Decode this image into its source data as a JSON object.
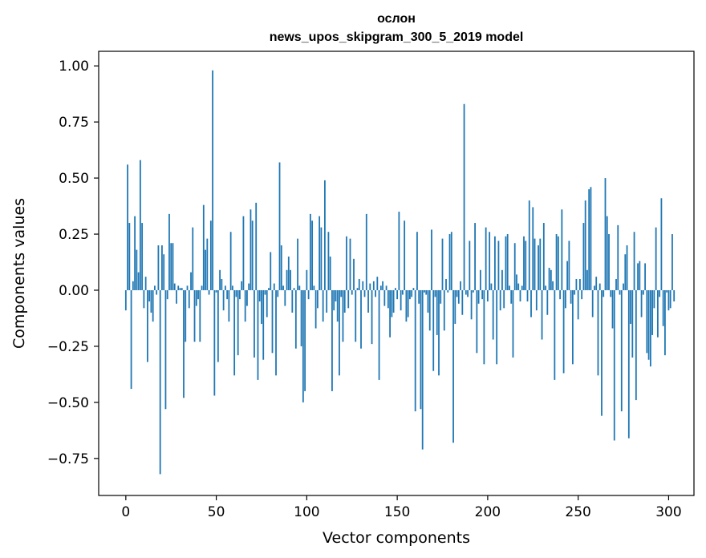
{
  "chart_data": {
    "type": "bar",
    "title": "ослон",
    "subtitle": "news_upos_skipgram_300_5_2019 model",
    "xlabel": "Vector components",
    "ylabel": "Components values",
    "xlim": [
      -15,
      314
    ],
    "ylim": [
      -0.915,
      1.065
    ],
    "grid": false,
    "bar_color": "#1f77b4",
    "x_ticks": [
      {
        "value": 0,
        "label": "0"
      },
      {
        "value": 50,
        "label": "50"
      },
      {
        "value": 100,
        "label": "100"
      },
      {
        "value": 150,
        "label": "150"
      },
      {
        "value": 200,
        "label": "200"
      },
      {
        "value": 250,
        "label": "250"
      },
      {
        "value": 300,
        "label": "300"
      }
    ],
    "y_ticks": [
      {
        "value": 1.0,
        "label": "1.00"
      },
      {
        "value": 0.75,
        "label": "0.75"
      },
      {
        "value": 0.5,
        "label": "0.50"
      },
      {
        "value": 0.25,
        "label": "0.25"
      },
      {
        "value": 0.0,
        "label": "0.00"
      },
      {
        "value": -0.25,
        "label": "−0.25"
      },
      {
        "value": -0.5,
        "label": "−0.50"
      },
      {
        "value": -0.75,
        "label": "−0.75"
      }
    ],
    "values": [
      -0.09,
      0.56,
      0.3,
      -0.44,
      0.04,
      0.33,
      0.18,
      0.08,
      0.58,
      0.3,
      -0.08,
      0.06,
      -0.32,
      -0.05,
      -0.1,
      -0.14,
      0.02,
      -0.02,
      0.2,
      -0.82,
      0.2,
      0.16,
      -0.53,
      -0.04,
      0.34,
      0.21,
      0.21,
      0.03,
      -0.06,
      0.02,
      0.01,
      0.01,
      -0.48,
      -0.23,
      0.02,
      -0.08,
      0.08,
      0.28,
      -0.23,
      -0.07,
      -0.04,
      -0.23,
      0.02,
      0.38,
      0.18,
      0.23,
      -0.02,
      0.31,
      0.98,
      -0.47,
      -0.01,
      -0.32,
      0.09,
      0.05,
      -0.09,
      0.02,
      -0.04,
      -0.14,
      0.26,
      0.02,
      -0.38,
      -0.03,
      -0.29,
      -0.04,
      0.04,
      0.33,
      -0.14,
      -0.07,
      0.03,
      0.36,
      0.31,
      -0.3,
      0.39,
      -0.4,
      -0.05,
      -0.15,
      -0.31,
      -0.02,
      -0.12,
      0.01,
      0.17,
      -0.28,
      0.03,
      -0.38,
      -0.03,
      0.57,
      0.2,
      0.02,
      -0.07,
      0.09,
      0.15,
      0.09,
      -0.1,
      0.01,
      -0.26,
      0.23,
      0.02,
      -0.25,
      -0.5,
      -0.45,
      0.09,
      -0.04,
      0.34,
      0.31,
      0.02,
      -0.17,
      -0.08,
      0.33,
      0.28,
      -0.14,
      0.49,
      -0.1,
      0.26,
      0.15,
      -0.45,
      -0.09,
      -0.05,
      -0.14,
      -0.38,
      -0.03,
      -0.23,
      -0.1,
      0.24,
      -0.08,
      0.23,
      -0.02,
      0.14,
      -0.23,
      0.01,
      0.05,
      -0.26,
      0.04,
      -0.03,
      0.34,
      -0.1,
      0.03,
      -0.24,
      0.04,
      -0.03,
      0.06,
      -0.4,
      0.02,
      0.04,
      -0.07,
      0.02,
      -0.08,
      -0.21,
      -0.12,
      -0.1,
      0.01,
      -0.04,
      0.35,
      -0.09,
      -0.02,
      0.31,
      -0.14,
      -0.12,
      -0.04,
      -0.03,
      0.01,
      -0.54,
      0.26,
      -0.06,
      -0.53,
      -0.71,
      -0.01,
      -0.02,
      -0.1,
      -0.18,
      0.27,
      -0.36,
      -0.03,
      -0.2,
      -0.38,
      -0.06,
      0.23,
      -0.18,
      0.05,
      -0.01,
      0.25,
      0.26,
      -0.68,
      -0.15,
      -0.03,
      -0.06,
      0.04,
      -0.11,
      0.83,
      -0.02,
      -0.03,
      0.22,
      -0.13,
      -0.01,
      0.3,
      -0.28,
      -0.06,
      0.09,
      -0.04,
      -0.33,
      0.28,
      -0.05,
      0.26,
      0.03,
      -0.22,
      0.24,
      -0.33,
      0.22,
      -0.09,
      0.09,
      -0.08,
      0.24,
      0.25,
      0.02,
      -0.06,
      -0.3,
      0.21,
      0.07,
      0.03,
      -0.05,
      0.02,
      0.24,
      0.22,
      -0.05,
      0.4,
      -0.12,
      0.37,
      0.23,
      -0.09,
      0.2,
      0.23,
      -0.22,
      0.3,
      0.02,
      -0.11,
      0.1,
      0.09,
      0.04,
      -0.4,
      0.25,
      0.24,
      -0.04,
      0.36,
      -0.37,
      -0.08,
      0.13,
      0.22,
      -0.06,
      -0.33,
      -0.02,
      0.05,
      -0.13,
      0.05,
      -0.04,
      0.3,
      0.4,
      0.09,
      0.45,
      0.46,
      -0.12,
      0.02,
      0.06,
      -0.38,
      0.03,
      -0.56,
      -0.03,
      0.5,
      0.33,
      0.25,
      -0.03,
      -0.17,
      -0.67,
      0.05,
      0.29,
      -0.02,
      -0.54,
      0.03,
      0.16,
      0.2,
      -0.66,
      -0.15,
      -0.3,
      0.26,
      -0.49,
      0.12,
      0.13,
      -0.12,
      -0.02,
      0.12,
      -0.28,
      -0.31,
      -0.34,
      -0.2,
      -0.08,
      0.28,
      -0.21,
      -0.03,
      0.41,
      -0.16,
      -0.29,
      -0.01,
      -0.09,
      -0.08,
      0.25,
      -0.05
    ]
  }
}
